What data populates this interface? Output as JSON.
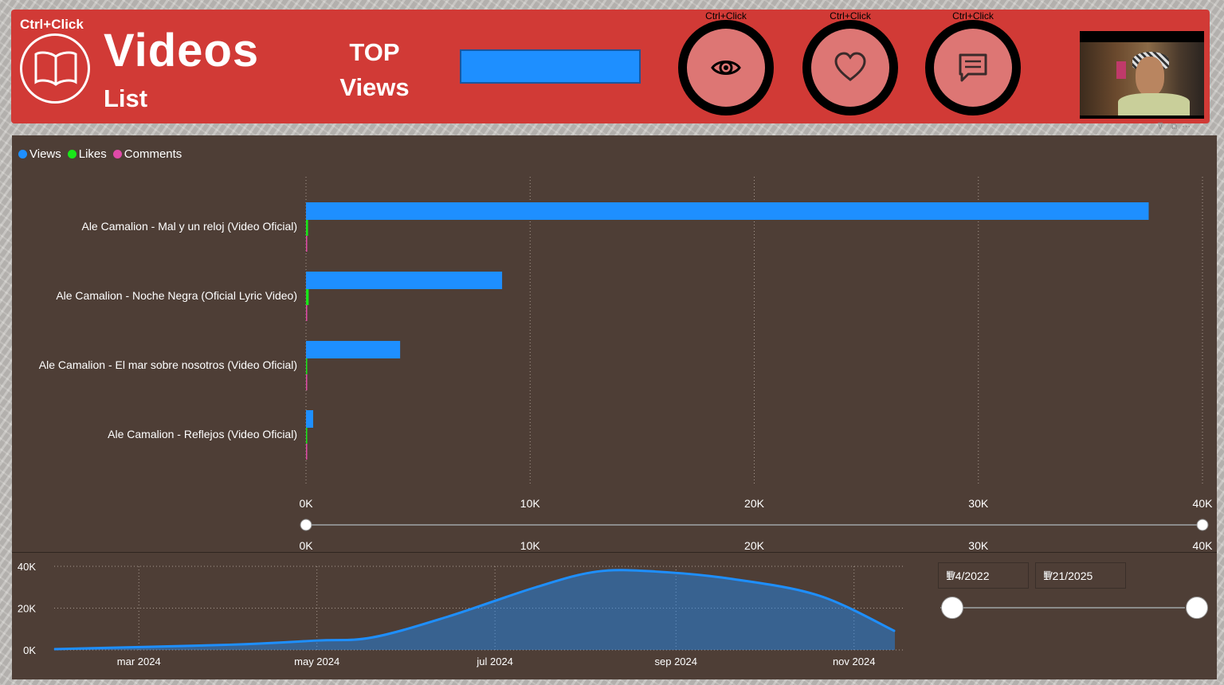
{
  "header": {
    "ctrl_label": "Ctrl+Click",
    "title": "Videos",
    "subtitle": "List",
    "top_label_1": "TOP",
    "top_label_2": "Views",
    "nav_buttons": [
      {
        "caption": "Ctrl+Click",
        "icon": "eye-icon"
      },
      {
        "caption": "Ctrl+Click",
        "icon": "heart-icon"
      },
      {
        "caption": "Ctrl+Click",
        "icon": "comment-icon"
      }
    ],
    "accent": "#d13a36"
  },
  "legend": [
    {
      "label": "Views",
      "color": "#1e8fff"
    },
    {
      "label": "Likes",
      "color": "#19e619"
    },
    {
      "label": "Comments",
      "color": "#e04aa8"
    }
  ],
  "date_filter": {
    "start": "1/4/2022",
    "end": "1/21/2025"
  },
  "chart_data": [
    {
      "type": "bar",
      "orientation": "horizontal",
      "categories": [
        "Ale Camalion - Mal y un reloj (Video Oficial)",
        "Ale Camalion - Noche Negra (Oficial Lyric Video)",
        "Ale Camalion - El mar sobre nosotros (Video Oficial)",
        "Ale Camalion - Reflejos (Video Oficial)"
      ],
      "series": [
        {
          "name": "Views",
          "values": [
            37600,
            8750,
            4200,
            320
          ],
          "color": "#1e8fff"
        },
        {
          "name": "Likes",
          "values": [
            90,
            120,
            40,
            20
          ],
          "color": "#19e619"
        },
        {
          "name": "Comments",
          "values": [
            5,
            8,
            3,
            2
          ],
          "color": "#e04aa8"
        }
      ],
      "xlim": [
        0,
        40000
      ],
      "xticks": [
        "0K",
        "10K",
        "20K",
        "30K",
        "40K"
      ],
      "slider_ticks": [
        "0K",
        "10K",
        "20K",
        "30K",
        "40K"
      ],
      "grid": true,
      "legend": "top-left"
    },
    {
      "type": "area",
      "x": [
        "2024-02-01",
        "2024-04-01",
        "2024-05-01",
        "2024-05-20",
        "2024-06-15",
        "2024-07-15",
        "2024-08-05",
        "2024-08-25",
        "2024-09-20",
        "2024-10-20",
        "2024-11-15"
      ],
      "values": [
        400,
        2500,
        4500,
        6000,
        16000,
        30000,
        37500,
        37500,
        34000,
        26000,
        9000
      ],
      "ylim": [
        0,
        40000
      ],
      "yticks": [
        "0K",
        "20K",
        "40K"
      ],
      "xticks": [
        "mar 2024",
        "may 2024",
        "jul 2024",
        "sep 2024",
        "nov 2024"
      ],
      "color": "#1e8fff",
      "grid": true
    }
  ]
}
